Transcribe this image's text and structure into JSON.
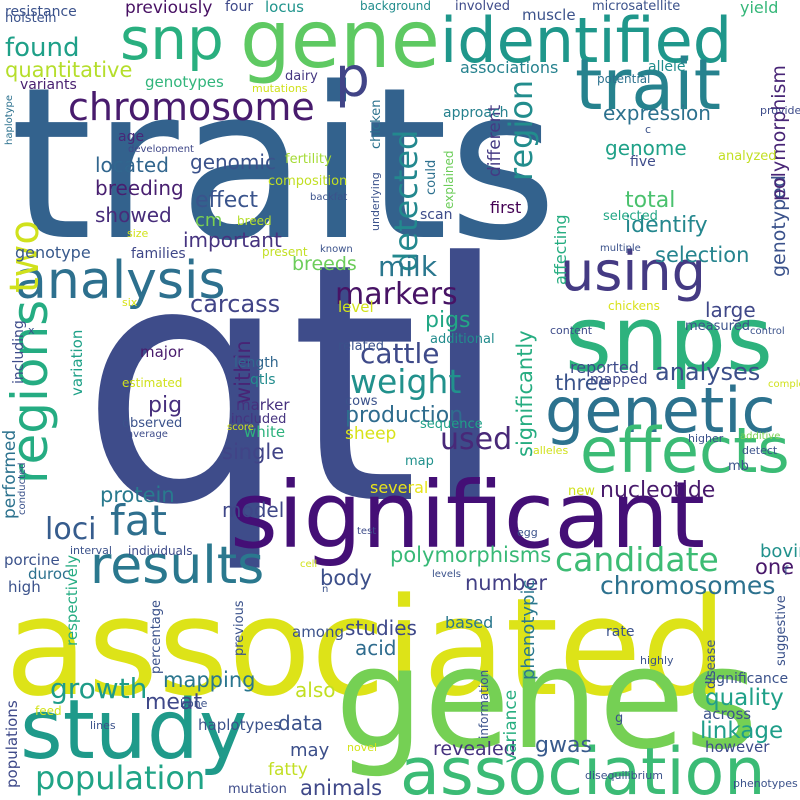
{
  "words": [
    {
      "text": "qtl",
      "color": "#3e4c8a"
    },
    {
      "text": "traits",
      "color": "#33628d"
    },
    {
      "text": "associated",
      "color": "#dde318"
    },
    {
      "text": "genes",
      "color": "#75d054"
    },
    {
      "text": "significant",
      "color": "#440f76"
    },
    {
      "text": "study",
      "color": "#1f9a8a"
    },
    {
      "text": "snps",
      "color": "#2db27d"
    },
    {
      "text": "association",
      "color": "#3bbb75"
    },
    {
      "text": "gene",
      "color": "#5ec962"
    },
    {
      "text": "identified",
      "color": "#1f978b"
    },
    {
      "text": "trait",
      "color": "#26828e"
    },
    {
      "text": "genetic",
      "color": "#2c728e"
    },
    {
      "text": "effects",
      "color": "#3bbb75"
    },
    {
      "text": "results",
      "color": "#2a788e"
    },
    {
      "text": "analysis",
      "color": "#2d708e"
    },
    {
      "text": "using",
      "color": "#443a83"
    },
    {
      "text": "snp",
      "color": "#29af7f"
    },
    {
      "text": "chromosome",
      "color": "#481b6d"
    },
    {
      "text": "regions",
      "color": "#25ac82"
    },
    {
      "text": "p",
      "color": "#414487"
    },
    {
      "text": "population",
      "color": "#20a486"
    },
    {
      "text": "fat",
      "color": "#2e6f8e"
    },
    {
      "text": "two",
      "color": "#d0e11c"
    },
    {
      "text": "candidate",
      "color": "#3dbc74"
    },
    {
      "text": "region",
      "color": "#228d8d"
    },
    {
      "text": "detected",
      "color": "#23888e"
    },
    {
      "text": "weight",
      "color": "#21918c"
    },
    {
      "text": "markers",
      "color": "#471365"
    },
    {
      "text": "cattle",
      "color": "#3e4a89"
    },
    {
      "text": "used",
      "color": "#482878"
    },
    {
      "text": "growth",
      "color": "#1e9c89"
    },
    {
      "text": "loci",
      "color": "#365c8d"
    },
    {
      "text": "milk",
      "color": "#2a778e"
    },
    {
      "text": "found",
      "color": "#1fa088"
    },
    {
      "text": "quantitative",
      "color": "#b5de2b"
    },
    {
      "text": "polymorphisms",
      "color": "#38b977"
    },
    {
      "text": "chromosomes",
      "color": "#2c718e"
    },
    {
      "text": "analyses",
      "color": "#3c4f8a"
    },
    {
      "text": "nucleotide",
      "color": "#481a6c"
    },
    {
      "text": "linkage",
      "color": "#1f9e89"
    },
    {
      "text": "quality",
      "color": "#1fa088"
    },
    {
      "text": "significantly",
      "color": "#26ad81"
    },
    {
      "text": "selection",
      "color": "#25848e"
    },
    {
      "text": "effect",
      "color": "#3a548c"
    },
    {
      "text": "located",
      "color": "#31668e"
    },
    {
      "text": "showed",
      "color": "#472c7a"
    },
    {
      "text": "genomic",
      "color": "#3b528b"
    },
    {
      "text": "production",
      "color": "#2f6c8e"
    },
    {
      "text": "total",
      "color": "#4ac16d"
    },
    {
      "text": "identify",
      "color": "#24878e"
    },
    {
      "text": "breeding",
      "color": "#481f70"
    },
    {
      "text": "meat",
      "color": "#3f4889"
    },
    {
      "text": "pigs",
      "color": "#22a785"
    },
    {
      "text": "carcass",
      "color": "#414487"
    },
    {
      "text": "pig",
      "color": "#472f7d"
    },
    {
      "text": "protein",
      "color": "#297a8e"
    },
    {
      "text": "mapping",
      "color": "#2a768e"
    },
    {
      "text": "revealed",
      "color": "#46337f"
    },
    {
      "text": "gwas",
      "color": "#375a8c"
    },
    {
      "text": "data",
      "color": "#3b528b"
    },
    {
      "text": "also",
      "color": "#c2df23"
    },
    {
      "text": "single",
      "color": "#414487"
    },
    {
      "text": "model",
      "color": "#3f4788"
    },
    {
      "text": "three",
      "color": "#3a538b"
    },
    {
      "text": "one",
      "color": "#48186a"
    },
    {
      "text": "number",
      "color": "#423f85"
    },
    {
      "text": "body",
      "color": "#3c4f8a"
    },
    {
      "text": "studies",
      "color": "#3e4989"
    },
    {
      "text": "acid",
      "color": "#2f6c8e"
    },
    {
      "text": "animals",
      "color": "#3f4889"
    },
    {
      "text": "genome",
      "color": "#1fa188"
    },
    {
      "text": "breeds",
      "color": "#6ccd5a"
    },
    {
      "text": "within",
      "color": "#482475"
    },
    {
      "text": "important",
      "color": "#46337f"
    },
    {
      "text": "genotyped",
      "color": "#3b528b"
    },
    {
      "text": "polymorphism",
      "color": "#482576"
    },
    {
      "text": "expression",
      "color": "#2c718e"
    },
    {
      "text": "large",
      "color": "#3f4788"
    },
    {
      "text": "genotype",
      "color": "#38598c"
    },
    {
      "text": "cm",
      "color": "#7ad151"
    },
    {
      "text": "sheep",
      "color": "#d8e219"
    },
    {
      "text": "variance",
      "color": "#28ae80"
    },
    {
      "text": "phenotypic",
      "color": "#2a788e"
    },
    {
      "text": "bovine",
      "color": "#21918c"
    },
    {
      "text": "performed",
      "color": "#2c728e"
    },
    {
      "text": "including",
      "color": "#3e4c8a"
    },
    {
      "text": "variation",
      "color": "#1fa188"
    },
    {
      "text": "respectively",
      "color": "#25ac82"
    },
    {
      "text": "populations",
      "color": "#3e4989"
    },
    {
      "text": "affecting",
      "color": "#26ad81"
    },
    {
      "text": "different",
      "color": "#443a83"
    },
    {
      "text": "may",
      "color": "#3c4f8a"
    },
    {
      "text": "fatty",
      "color": "#c2df23"
    },
    {
      "text": "several",
      "color": "#e7e419"
    },
    {
      "text": "marker",
      "color": "#46317e"
    },
    {
      "text": "first",
      "color": "#440154"
    },
    {
      "text": "previously",
      "color": "#471063"
    },
    {
      "text": "associations",
      "color": "#26828e"
    },
    {
      "text": "reported",
      "color": "#3e4c8a"
    },
    {
      "text": "mapped",
      "color": "#3f4788"
    },
    {
      "text": "based",
      "color": "#2a778e"
    },
    {
      "text": "sequence",
      "color": "#1fa188"
    },
    {
      "text": "white",
      "color": "#2db27d"
    },
    {
      "text": "cows",
      "color": "#3b528b"
    },
    {
      "text": "genotypes",
      "color": "#31b57b"
    },
    {
      "text": "muscle",
      "color": "#3b528b"
    },
    {
      "text": "yield",
      "color": "#35b779"
    },
    {
      "text": "allele",
      "color": "#228d8d"
    },
    {
      "text": "locus",
      "color": "#1f948c"
    },
    {
      "text": "four",
      "color": "#3e4989"
    },
    {
      "text": "resistance",
      "color": "#3b528b"
    },
    {
      "text": "holstein",
      "color": "#3b528b"
    },
    {
      "text": "variants",
      "color": "#481f70"
    },
    {
      "text": "age",
      "color": "#482878"
    },
    {
      "text": "families",
      "color": "#3f4788"
    },
    {
      "text": "breed",
      "color": "#b5de2b"
    },
    {
      "text": "level",
      "color": "#d2e21b"
    },
    {
      "text": "major",
      "color": "#481a6c"
    },
    {
      "text": "estimated",
      "color": "#d0e11c"
    },
    {
      "text": "observed",
      "color": "#3b528b"
    },
    {
      "text": "included",
      "color": "#46337f"
    },
    {
      "text": "length",
      "color": "#31678e"
    },
    {
      "text": "qtls",
      "color": "#228c8d"
    },
    {
      "text": "fertility",
      "color": "#a5db36"
    },
    {
      "text": "composition",
      "color": "#c2df23"
    },
    {
      "text": "five",
      "color": "#3e4c8a"
    },
    {
      "text": "scan",
      "color": "#3e4c8a"
    },
    {
      "text": "could",
      "color": "#2d708e"
    },
    {
      "text": "explained",
      "color": "#6ccd5a"
    },
    {
      "text": "underlying",
      "color": "#3b528b"
    },
    {
      "text": "chicken",
      "color": "#2c728e"
    },
    {
      "text": "approach",
      "color": "#26818e"
    },
    {
      "text": "involved",
      "color": "#3e4a89"
    },
    {
      "text": "background",
      "color": "#228d8d"
    },
    {
      "text": "microsatellite",
      "color": "#3b528b"
    },
    {
      "text": "potential",
      "color": "#2c718e"
    },
    {
      "text": "dairy",
      "color": "#453781"
    },
    {
      "text": "mutations",
      "color": "#d0e11c"
    },
    {
      "text": "provide",
      "color": "#3e4c8a"
    },
    {
      "text": "haplotype",
      "color": "#2c718e"
    },
    {
      "text": "development",
      "color": "#3f4788"
    },
    {
      "text": "analyzed",
      "color": "#c2df23"
    },
    {
      "text": "selected",
      "color": "#22a785"
    },
    {
      "text": "backfat",
      "color": "#3b528b"
    },
    {
      "text": "present",
      "color": "#c2df23"
    },
    {
      "text": "size",
      "color": "#d2e21b"
    },
    {
      "text": "known",
      "color": "#3b528b"
    },
    {
      "text": "multiple",
      "color": "#3b528b"
    },
    {
      "text": "content",
      "color": "#3e4c8a"
    },
    {
      "text": "chickens",
      "color": "#d8e219"
    },
    {
      "text": "measured",
      "color": "#3b528b"
    },
    {
      "text": "six",
      "color": "#d8e219"
    },
    {
      "text": "control",
      "color": "#3b528b"
    },
    {
      "text": "related",
      "color": "#3b528b"
    },
    {
      "text": "additional",
      "color": "#228c8d"
    },
    {
      "text": "complex",
      "color": "#d0e11c"
    },
    {
      "text": "higher",
      "color": "#3b528b"
    },
    {
      "text": "additive",
      "color": "#7ad151"
    },
    {
      "text": "detect",
      "color": "#3b528b"
    },
    {
      "text": "alleles",
      "color": "#d0e11c"
    },
    {
      "text": "average",
      "color": "#3e4c8a"
    },
    {
      "text": "score",
      "color": "#d2e21b"
    },
    {
      "text": "map",
      "color": "#21918c"
    },
    {
      "text": "mb",
      "color": "#3b528b"
    },
    {
      "text": "new",
      "color": "#d0e11c"
    },
    {
      "text": "conducted",
      "color": "#3b528b"
    },
    {
      "text": "test",
      "color": "#3e4c8a"
    },
    {
      "text": "egg",
      "color": "#3b528b"
    },
    {
      "text": "interval",
      "color": "#3b528b"
    },
    {
      "text": "individuals",
      "color": "#3e4c8a"
    },
    {
      "text": "porcine",
      "color": "#3b528b"
    },
    {
      "text": "duroc",
      "color": "#2c718e"
    },
    {
      "text": "high",
      "color": "#3b528b"
    },
    {
      "text": "cell",
      "color": "#d2e21b"
    },
    {
      "text": "levels",
      "color": "#3b528b"
    },
    {
      "text": "n",
      "color": "#3b528b"
    },
    {
      "text": "percentage",
      "color": "#3b528b"
    },
    {
      "text": "previous",
      "color": "#3b528b"
    },
    {
      "text": "bone",
      "color": "#3b528b"
    },
    {
      "text": "feed",
      "color": "#d2e21b"
    },
    {
      "text": "lines",
      "color": "#3b528b"
    },
    {
      "text": "haplotypes",
      "color": "#3b528b"
    },
    {
      "text": "mutation",
      "color": "#3e4c8a"
    },
    {
      "text": "among",
      "color": "#3b528b"
    },
    {
      "text": "information",
      "color": "#3b528b"
    },
    {
      "text": "highly",
      "color": "#3b528b"
    },
    {
      "text": "disease",
      "color": "#3b528b"
    },
    {
      "text": "suggestive",
      "color": "#3b528b"
    },
    {
      "text": "rate",
      "color": "#3b528b"
    },
    {
      "text": "significance",
      "color": "#3b528b"
    },
    {
      "text": "across",
      "color": "#3b528b"
    },
    {
      "text": "g",
      "color": "#3b528b"
    },
    {
      "text": "novel",
      "color": "#d2e21b"
    },
    {
      "text": "disequilibrium",
      "color": "#3b528b"
    },
    {
      "text": "however",
      "color": "#3e4c8a"
    },
    {
      "text": "phenotypes",
      "color": "#3b528b"
    },
    {
      "text": "f",
      "color": "#3b528b"
    },
    {
      "text": "c",
      "color": "#3b528b"
    },
    {
      "text": "x",
      "color": "#3b528b"
    }
  ]
}
